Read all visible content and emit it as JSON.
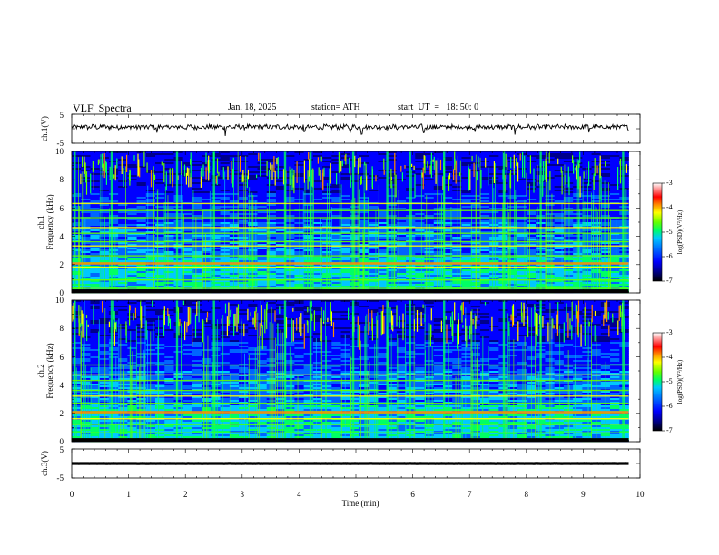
{
  "header": {
    "title": "VLF  Spectra",
    "date": "Jan. 18, 2025",
    "station": "station= ATH",
    "start": "start  UT  =   18: 50: 0"
  },
  "chart_data": [
    {
      "type": "line",
      "panel": "ch1-waveform",
      "ylabel": "ch.1(V)",
      "ylim": [
        -5,
        5
      ],
      "yticks": [
        "5",
        "-5"
      ],
      "xlim": [
        0,
        10
      ],
      "data_extent_min": 9.8,
      "mean_value": 0.6,
      "amplitude_v": 0.8,
      "spike_times_min": [
        1.5,
        2.7,
        4.1,
        4.9,
        5.1,
        6.2,
        7.1,
        7.8,
        9.1
      ]
    },
    {
      "type": "heatmap",
      "panel": "ch1-spectrogram",
      "ylabel": "ch.1\nFrequency (kHz)",
      "ylabel_line1": "ch.1",
      "ylabel_line2": "Frequency (kHz)",
      "ylim": [
        0,
        10
      ],
      "yticks": [
        "0",
        "2",
        "4",
        "6",
        "8",
        "10"
      ],
      "xlim": [
        0,
        10
      ],
      "data_extent_min": 9.8,
      "colorbar": {
        "label": "log(PSD)(V²/Hz)",
        "range": [
          -7,
          -3
        ],
        "ticks": [
          "-3",
          "-4",
          "-5",
          "-6",
          "-7"
        ]
      },
      "bands_khz": [
        0.3,
        0.9,
        1.8,
        2.1,
        2.6,
        3.3,
        3.6,
        4.2,
        4.6,
        5.3,
        5.8,
        6.3
      ],
      "burst_times_min": [
        0.05,
        0.7,
        1.85,
        2.5,
        3.75,
        4.2,
        4.95,
        5.55,
        5.95,
        6.55,
        7.6,
        8.25,
        9.7
      ]
    },
    {
      "type": "heatmap",
      "panel": "ch2-spectrogram",
      "ylabel": "ch.2\nFrequency (kHz)",
      "ylabel_line1": "ch.2",
      "ylabel_line2": "Frequency (kHz)",
      "ylim": [
        0,
        10
      ],
      "yticks": [
        "0",
        "2",
        "4",
        "6",
        "8",
        "10"
      ],
      "xlim": [
        0,
        10
      ],
      "data_extent_min": 9.8,
      "colorbar": {
        "label": "log(PSD)(V²/Hz)",
        "range": [
          -7,
          -3
        ],
        "ticks": [
          "-3",
          "-4",
          "-5",
          "-6",
          "-7"
        ]
      },
      "bands_khz": [
        0.6,
        1.2,
        1.6,
        2.1,
        2.7,
        3.2,
        3.6,
        4.3,
        4.7,
        5.4
      ],
      "burst_times_min": [
        0.05,
        0.7,
        1.85,
        2.5,
        3.75,
        4.2,
        4.95,
        5.55,
        5.95,
        6.55,
        7.6,
        8.25,
        9.7
      ]
    },
    {
      "type": "line",
      "panel": "ch3-waveform",
      "ylabel": "ch.3(V)",
      "ylim": [
        -5,
        5
      ],
      "yticks": [
        "5",
        "-5"
      ],
      "xlim": [
        0,
        10
      ],
      "data_extent_min": 9.8,
      "mean_value": 0.0,
      "amplitude_v": 0.1,
      "xlabel": "Time  (min)",
      "xticks": [
        "0",
        "1",
        "2",
        "3",
        "4",
        "5",
        "6",
        "7",
        "8",
        "9",
        "10"
      ]
    }
  ],
  "colors": {
    "spectral_ramp": [
      "#000000",
      "#00008c",
      "#0000ff",
      "#0064ff",
      "#00c8ff",
      "#00ff64",
      "#64ff00",
      "#ffff00",
      "#ff8c00",
      "#ff0000",
      "#ffffff"
    ]
  }
}
